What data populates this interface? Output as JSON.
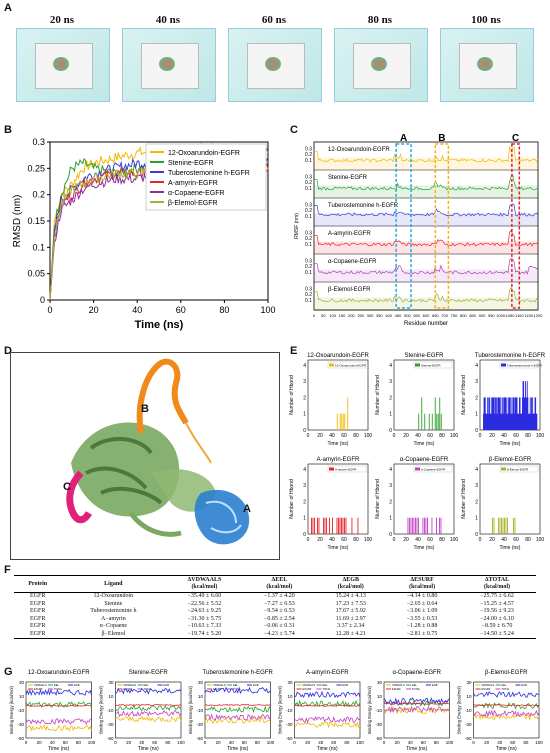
{
  "panel_letters": {
    "A": "A",
    "B": "B",
    "C": "C",
    "D": "D",
    "E": "E",
    "F": "F",
    "G": "G"
  },
  "panelA": {
    "labels": [
      "20 ns",
      "40 ns",
      "60 ns",
      "80 ns",
      "100 ns"
    ]
  },
  "panelB": {
    "chart_data": {
      "type": "line",
      "xlabel": "Time (ns)",
      "ylabel": "RMSD (nm)",
      "xlim": [
        0,
        100
      ],
      "ylim": [
        0.0,
        0.3
      ],
      "xticks": [
        0,
        20,
        40,
        60,
        80,
        100
      ],
      "yticks": [
        0.0,
        0.05,
        0.1,
        0.15,
        0.2,
        0.25,
        0.3
      ],
      "legend_position": "top-right",
      "series": [
        {
          "name": "12-Oxoarundoin-EGFR",
          "color": "#f5b800",
          "x": [
            0,
            2,
            5,
            10,
            15,
            20,
            30,
            40,
            50,
            60,
            70,
            80,
            90,
            100
          ],
          "y": [
            0.0,
            0.15,
            0.2,
            0.22,
            0.25,
            0.26,
            0.27,
            0.28,
            0.28,
            0.28,
            0.29,
            0.29,
            0.29,
            0.27
          ]
        },
        {
          "name": "Stenine-EGFR",
          "color": "#2ca02c",
          "x": [
            0,
            2,
            5,
            10,
            15,
            20,
            30,
            40,
            50,
            60,
            70,
            80,
            90,
            100
          ],
          "y": [
            0.0,
            0.14,
            0.2,
            0.25,
            0.26,
            0.25,
            0.24,
            0.25,
            0.26,
            0.25,
            0.26,
            0.26,
            0.27,
            0.28
          ]
        },
        {
          "name": "Tuberostemonine h-EGFR",
          "color": "#3a3ad8",
          "x": [
            0,
            2,
            5,
            10,
            15,
            20,
            30,
            40,
            50,
            60,
            70,
            80,
            90,
            100
          ],
          "y": [
            0.0,
            0.13,
            0.19,
            0.21,
            0.23,
            0.24,
            0.25,
            0.26,
            0.26,
            0.26,
            0.26,
            0.26,
            0.27,
            0.27
          ]
        },
        {
          "name": "A-amyrin-EGFR",
          "color": "#e8202a",
          "x": [
            0,
            2,
            5,
            10,
            15,
            20,
            30,
            40,
            50,
            60,
            70,
            80,
            90,
            100
          ],
          "y": [
            0.0,
            0.12,
            0.18,
            0.2,
            0.22,
            0.23,
            0.24,
            0.24,
            0.25,
            0.25,
            0.25,
            0.25,
            0.26,
            0.25
          ]
        },
        {
          "name": "α-Copaene-EGFR",
          "color": "#8a2da0",
          "x": [
            0,
            2,
            5,
            10,
            15,
            20,
            30,
            40,
            50,
            60,
            70,
            80,
            90,
            100
          ],
          "y": [
            0.0,
            0.11,
            0.17,
            0.19,
            0.21,
            0.22,
            0.23,
            0.23,
            0.24,
            0.24,
            0.24,
            0.24,
            0.25,
            0.25
          ]
        },
        {
          "name": "β-Elemol-EGFR",
          "color": "#a7b02a",
          "x": [
            0,
            2,
            5,
            10,
            15,
            20,
            30,
            40,
            50,
            60,
            70,
            80,
            90,
            100
          ],
          "y": [
            0.0,
            0.12,
            0.18,
            0.21,
            0.22,
            0.23,
            0.24,
            0.24,
            0.25,
            0.25,
            0.25,
            0.24,
            0.25,
            0.25
          ]
        }
      ]
    }
  },
  "panelC": {
    "chart_data": {
      "type": "line",
      "xlabel": "Residue number",
      "ylabel": "RMSF (nm)",
      "xticks": [
        0,
        50,
        100,
        150,
        200,
        250,
        300,
        350,
        400,
        450,
        500,
        550,
        600,
        650,
        700,
        750,
        800,
        850,
        900,
        950,
        1000,
        1050,
        1100,
        1150,
        1200
      ],
      "yticks": [
        0.1,
        0.2,
        0.3
      ],
      "region_labels": [
        "A",
        "B",
        "C"
      ],
      "region_colors": [
        "#2aa7e0",
        "#f2b01e",
        "#d8262a"
      ],
      "series": [
        {
          "name": "12-Oxoarundoin-EGFR",
          "color": "#f5b800"
        },
        {
          "name": "Stenine-EGFR",
          "color": "#2ca02c"
        },
        {
          "name": "Tuberostemonine h-EGFR",
          "color": "#3a3ad8"
        },
        {
          "name": "A-amyrin-EGFR",
          "color": "#e8202a"
        },
        {
          "name": "α-Copaene-EGFR",
          "color": "#b040c0"
        },
        {
          "name": "β-Elemol-EGFR",
          "color": "#a7b02a"
        }
      ]
    }
  },
  "panelD": {
    "labels": [
      "B",
      "C",
      "A"
    ]
  },
  "panelE": {
    "chart_data": [
      {
        "type": "bar",
        "title": "12-Oxoarundoin-EGFR",
        "legend": "12-Oxoarundoin-EGFR",
        "color": "#f5b800",
        "xlabel": "Time (ns)",
        "ylabel": "Number of Hbond",
        "xticks": [
          0,
          20,
          40,
          60,
          80,
          100
        ],
        "yticks": [
          0,
          1,
          2,
          3,
          4
        ]
      },
      {
        "type": "bar",
        "title": "Stenine-EGFR",
        "legend": "Stenine-EGFR",
        "color": "#2ca02c",
        "xlabel": "Time (ns)",
        "ylabel": "Number of Hbond",
        "xticks": [
          0,
          20,
          40,
          60,
          80,
          100
        ],
        "yticks": [
          0,
          1,
          2,
          3,
          4
        ]
      },
      {
        "type": "bar",
        "title": "Tuberostemonine h-EGFR",
        "legend": "Tuberostemonine h-EGFR",
        "color": "#2a2ae0",
        "xlabel": "Time (ns)",
        "ylabel": "Number of Hbond",
        "xticks": [
          0,
          20,
          40,
          60,
          80,
          100
        ],
        "yticks": [
          0,
          1,
          2,
          3,
          4
        ]
      },
      {
        "type": "bar",
        "title": "A-amyrin-EGFR",
        "legend": "A-amyrin-EGFR",
        "color": "#e8202a",
        "xlabel": "Time (ns)",
        "ylabel": "Number of Hbond",
        "xticks": [
          0,
          20,
          40,
          60,
          80,
          100
        ],
        "yticks": [
          0,
          1,
          2,
          3,
          4
        ]
      },
      {
        "type": "bar",
        "title": "α-Copaene-EGFR",
        "legend": "α-Copaene-EGFR",
        "color": "#c040c8",
        "xlabel": "Time (ns)",
        "ylabel": "Number of Hbond",
        "xticks": [
          0,
          20,
          40,
          60,
          80,
          100
        ],
        "yticks": [
          0,
          1,
          2,
          3,
          4
        ]
      },
      {
        "type": "bar",
        "title": "β-Elemol-EGFR",
        "legend": "β-Elemol-EGFR",
        "color": "#a7b02a",
        "xlabel": "Time (ns)",
        "ylabel": "Number of Hbond",
        "xticks": [
          0,
          20,
          40,
          60,
          80,
          100
        ],
        "yticks": [
          0,
          1,
          2,
          3,
          4
        ]
      }
    ]
  },
  "panelF": {
    "chart_data": {
      "type": "table",
      "headers": [
        "Protein",
        "Ligand",
        "ΔVDWAALS\n(kcal/mol)",
        "ΔEEL\n(kcal/mol)",
        "ΔEGB\n(kcal/mol)",
        "ΔESURF\n(kcal/mol)",
        "ΔTOTAL\n(kcal/mol)"
      ],
      "rows": [
        [
          "EGFR",
          "12-Oxoarundoin",
          "−35.49 ± 6.60",
          "−1.37 ± 4.20",
          "15.24 ± 4.13",
          "−4.14 ± 0.80",
          "−25.75 ± 6.62"
        ],
        [
          "EGFR",
          "Stenine",
          "−22.56 ± 5.52",
          "−7.27 ± 6.53",
          "17.23 ± 7.53",
          "−2.65 ± 0.64",
          "−15.25 ± 4.57"
        ],
        [
          "EGFR",
          "Tuberostemonine h",
          "−24.63 ± 9.25",
          "−9.54 ± 6.53",
          "17.67 ± 5.92",
          "−3.06 ± 1.09",
          "−19.56 ± 9.23"
        ],
        [
          "EGFR",
          "A−amyrin",
          "−31.30 ± 5.75",
          "−0.85 ± 2.54",
          "11.69 ± 2.97",
          "−3.55 ± 0.53",
          "−24.00 ± 6.10"
        ],
        [
          "EGFR",
          "α−Copaene",
          "−10.63 ± 7.33",
          "−0.06 ± 0.31",
          "3.37 ± 2.34",
          "−1.28 ± 0.88",
          "−8.59 ± 6.70"
        ],
        [
          "EGFR",
          "β−Elemol",
          "−19.74 ± 5.20",
          "−4.23 ± 5.74",
          "12.28 ± 4.21",
          "−2.81 ± 0.75",
          "−14.50 ± 5.24"
        ]
      ]
    }
  },
  "panelG": {
    "chart_data": [
      {
        "type": "line",
        "title": "12-Oxoarundoin-EGFR",
        "ylabel": "Binding Energy (kcal/mol)",
        "xlabel": "Time (ns)",
        "ylim": [
          -50,
          30
        ],
        "yticks": [
          -50,
          -30,
          -10,
          10,
          30
        ],
        "xticks": [
          0,
          20,
          40,
          60,
          80,
          100
        ]
      },
      {
        "type": "line",
        "title": "Stenine-EGFR",
        "ylabel": "Binding Energy (kcal/mol)",
        "xlabel": "Time (ns)",
        "ylim": [
          -50,
          30
        ],
        "yticks": [
          -50,
          -30,
          -10,
          10,
          30
        ],
        "xticks": [
          0,
          20,
          40,
          60,
          80,
          100
        ]
      },
      {
        "type": "line",
        "title": "Tuberostemonine h-EGFR",
        "ylabel": "Binding Energy (kcal/mol)",
        "xlabel": "Time (ns)",
        "ylim": [
          -50,
          30
        ],
        "yticks": [
          -50,
          -30,
          -10,
          10,
          30
        ],
        "xticks": [
          0,
          20,
          40,
          60,
          80,
          100
        ]
      },
      {
        "type": "line",
        "title": "A-amyrin-EGFR",
        "ylabel": "Binding Energy (kcal/mol)",
        "xlabel": "Time (ns)",
        "ylim": [
          -50,
          30
        ],
        "yticks": [
          -50,
          -30,
          -10,
          10,
          30
        ],
        "xticks": [
          0,
          20,
          40,
          60,
          80,
          100
        ]
      },
      {
        "type": "line",
        "title": "α-Copaene-EGFR",
        "ylabel": "Binding Energy (kcal/mol)",
        "xlabel": "Time (ns)",
        "ylim": [
          -50,
          30
        ],
        "yticks": [
          -50,
          -30,
          -10,
          10,
          30
        ],
        "xticks": [
          0,
          20,
          40,
          60,
          80,
          100
        ]
      },
      {
        "type": "line",
        "title": "β-Elemol-EGFR",
        "ylabel": "Binding Energy (kcal/mol)",
        "xlabel": "Time (ns)",
        "ylim": [
          -50,
          30
        ],
        "yticks": [
          -50,
          -30,
          -10,
          10,
          30
        ],
        "xticks": [
          0,
          20,
          40,
          60,
          80,
          100
        ]
      }
    ],
    "legend": [
      {
        "name": "VDWAALS",
        "color": "#f5b800"
      },
      {
        "name": "EEL",
        "color": "#2ca02c"
      },
      {
        "name": "EGB",
        "color": "#2a2ae0"
      },
      {
        "name": "ESURF",
        "color": "#e8202a"
      },
      {
        "name": "TOTAL",
        "color": "#c040c8"
      }
    ]
  }
}
